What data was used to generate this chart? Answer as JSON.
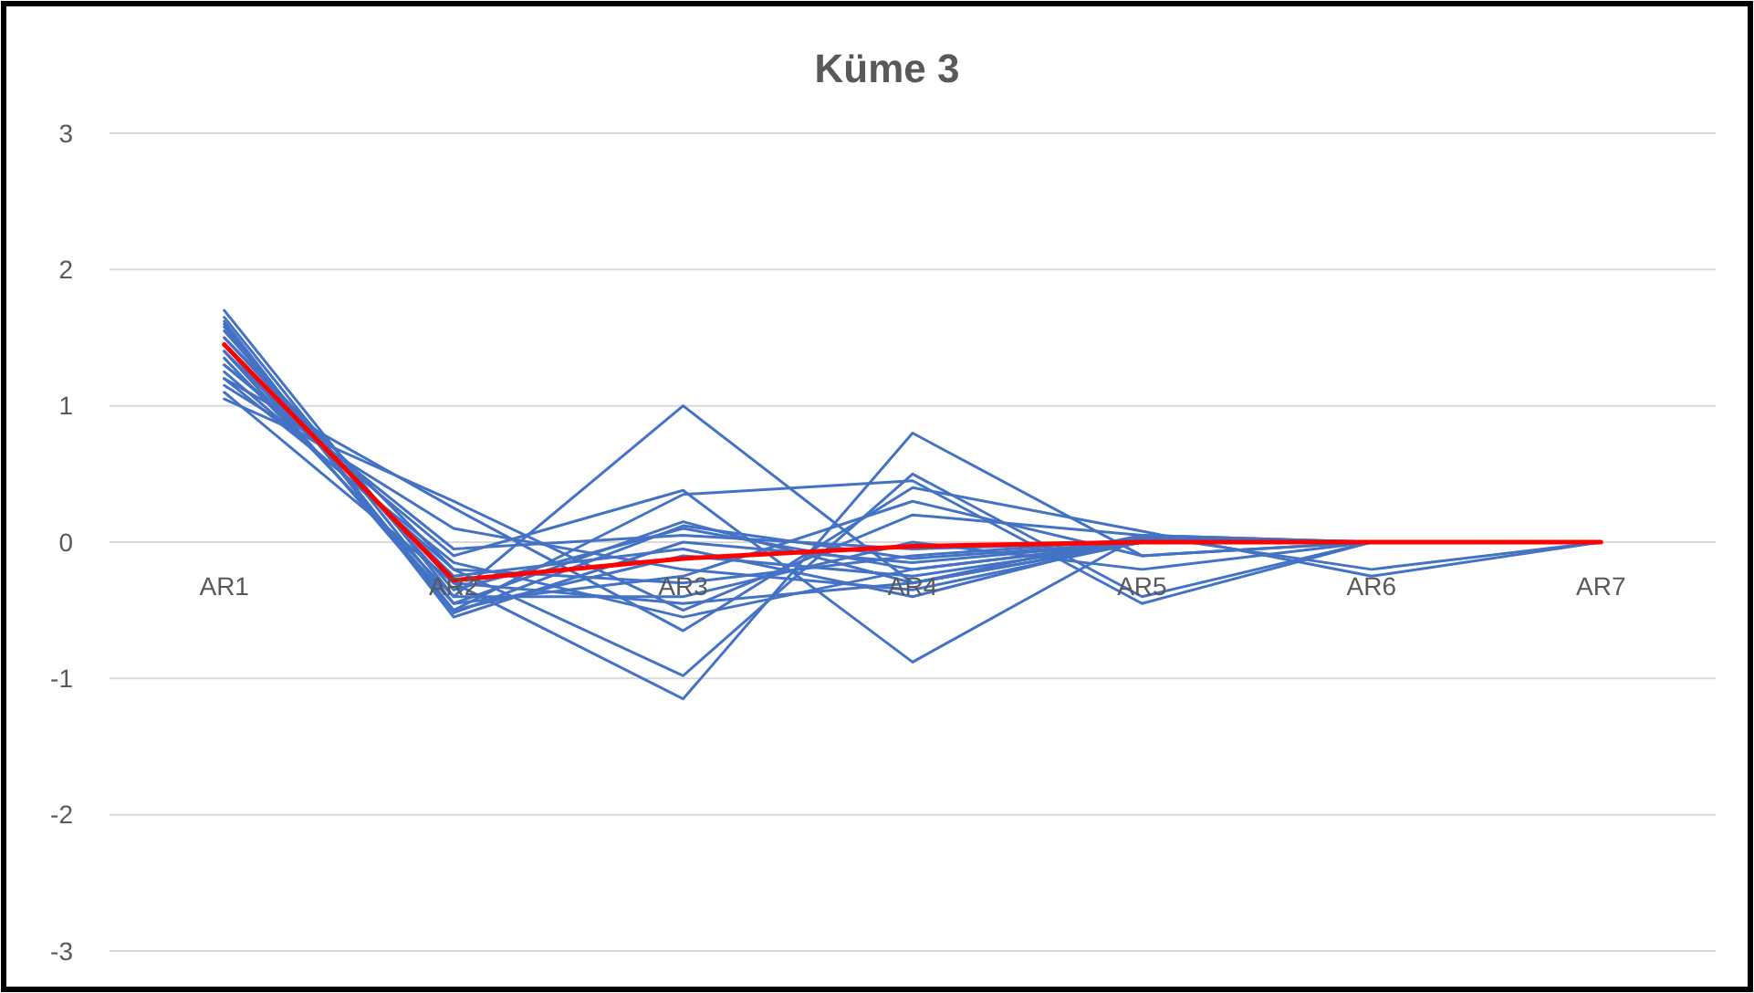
{
  "chart_data": {
    "type": "line",
    "title": "Küme 3",
    "categories": [
      "AR1",
      "AR2",
      "AR3",
      "AR4",
      "AR5",
      "AR6",
      "AR7"
    ],
    "ylim": [
      -3,
      3
    ],
    "yticks": [
      -3,
      -2,
      -1,
      0,
      1,
      2,
      3
    ],
    "grid": "y",
    "series": [
      {
        "color": "#4472c4",
        "values": [
          1.7,
          -0.4,
          1.0,
          -0.3,
          0.0,
          0,
          0
        ]
      },
      {
        "color": "#4472c4",
        "values": [
          1.1,
          -0.3,
          -1.15,
          0.8,
          -0.1,
          0,
          0
        ]
      },
      {
        "color": "#4472c4",
        "values": [
          1.5,
          -0.2,
          -0.98,
          0.5,
          -0.4,
          0,
          0
        ]
      },
      {
        "color": "#4472c4",
        "values": [
          1.3,
          -0.1,
          0.38,
          -0.88,
          0.05,
          0,
          0
        ]
      },
      {
        "color": "#4472c4",
        "values": [
          1.6,
          -0.5,
          0.35,
          0.45,
          -0.45,
          0,
          0
        ]
      },
      {
        "color": "#4472c4",
        "values": [
          1.2,
          0.25,
          -0.65,
          0.4,
          0.08,
          -0.25,
          0
        ]
      },
      {
        "color": "#4472c4",
        "values": [
          1.05,
          0.3,
          -0.5,
          0.2,
          0.05,
          -0.2,
          0
        ]
      },
      {
        "color": "#4472c4",
        "values": [
          1.4,
          -0.45,
          0.15,
          -0.3,
          0.0,
          0,
          0
        ]
      },
      {
        "color": "#4472c4",
        "values": [
          1.55,
          -0.35,
          0.1,
          -0.2,
          0.0,
          0,
          0
        ]
      },
      {
        "color": "#4472c4",
        "values": [
          1.25,
          -0.2,
          -0.3,
          -0.1,
          0.02,
          0,
          0
        ]
      },
      {
        "color": "#4472c4",
        "values": [
          1.45,
          -0.5,
          -0.1,
          -0.25,
          0.0,
          0,
          0
        ]
      },
      {
        "color": "#4472c4",
        "values": [
          1.35,
          -0.4,
          -0.4,
          0.0,
          -0.2,
          0,
          0
        ]
      },
      {
        "color": "#4472c4",
        "values": [
          1.15,
          0.1,
          -0.2,
          -0.35,
          0.0,
          0,
          0
        ]
      },
      {
        "color": "#4472c4",
        "values": [
          1.62,
          -0.55,
          0.0,
          -0.15,
          0.0,
          0,
          0
        ]
      },
      {
        "color": "#4472c4",
        "values": [
          1.5,
          -0.3,
          -0.45,
          -0.3,
          0.05,
          0,
          0
        ]
      },
      {
        "color": "#4472c4",
        "values": [
          1.3,
          -0.05,
          0.05,
          -0.05,
          0.0,
          0,
          0
        ]
      },
      {
        "color": "#4472c4",
        "values": [
          1.65,
          -0.45,
          -0.25,
          0.3,
          -0.1,
          0,
          0
        ]
      },
      {
        "color": "#4472c4",
        "values": [
          1.2,
          -0.15,
          -0.55,
          -0.2,
          0.0,
          0,
          0
        ]
      },
      {
        "color": "#4472c4",
        "values": [
          1.58,
          -0.52,
          0.12,
          -0.12,
          0.0,
          0,
          0
        ]
      },
      {
        "color": "#4472c4",
        "values": [
          1.4,
          -0.25,
          -0.05,
          -0.4,
          0.03,
          0,
          0
        ]
      },
      {
        "color": "#ff0000",
        "values": [
          1.45,
          -0.28,
          -0.12,
          -0.03,
          0,
          0,
          0
        ]
      }
    ]
  }
}
